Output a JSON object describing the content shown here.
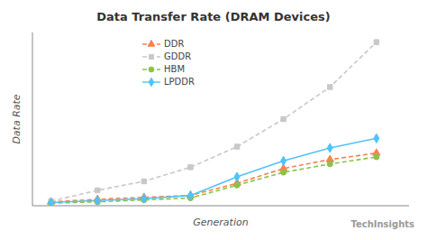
{
  "chart_data": {
    "type": "line",
    "title": "Data Transfer Rate (DRAM Devices)",
    "xlabel": "Generation",
    "ylabel": "Data Rate",
    "annotations": [
      "TechInsights"
    ],
    "x": [
      1,
      2,
      3,
      4,
      5,
      6,
      7,
      8
    ],
    "series": [
      {
        "name": "DDR",
        "color": "#f4834f",
        "marker": "triangle",
        "line_style": "dashed",
        "values": [
          0.06,
          0.1,
          0.13,
          0.16,
          0.35,
          0.58,
          0.72,
          0.82
        ]
      },
      {
        "name": "GDDR",
        "color": "#c8c8c8",
        "marker": "square",
        "line_style": "dashed",
        "values": [
          0.07,
          0.24,
          0.38,
          0.6,
          0.92,
          1.35,
          1.85,
          2.55
        ]
      },
      {
        "name": "HBM",
        "color": "#8bc34a",
        "marker": "circle",
        "line_style": "dashed",
        "values": [
          0.04,
          0.06,
          0.09,
          0.12,
          0.32,
          0.52,
          0.65,
          0.76
        ]
      },
      {
        "name": "LPDDR",
        "color": "#4fc3f7",
        "marker": "diamond",
        "line_style": "solid",
        "values": [
          0.05,
          0.08,
          0.11,
          0.16,
          0.45,
          0.7,
          0.9,
          1.05
        ]
      }
    ],
    "xlim": [
      0.6,
      8.7
    ],
    "ylim": [
      0,
      2.7
    ],
    "xticks": [],
    "yticks": [],
    "tick_labels": false,
    "grid": false,
    "legend": "upper left"
  }
}
